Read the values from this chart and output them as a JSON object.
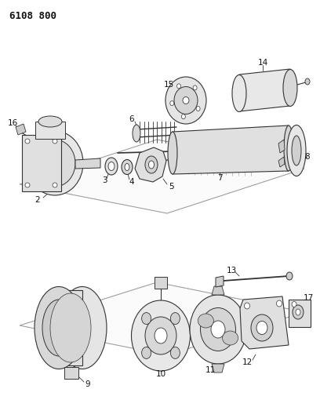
{
  "title": "6108 800",
  "bg_color": "#ffffff",
  "line_color": "#333333",
  "label_color": "#111111",
  "label_fontsize": 7.5,
  "fig_width": 4.08,
  "fig_height": 5.33,
  "dpi": 100
}
